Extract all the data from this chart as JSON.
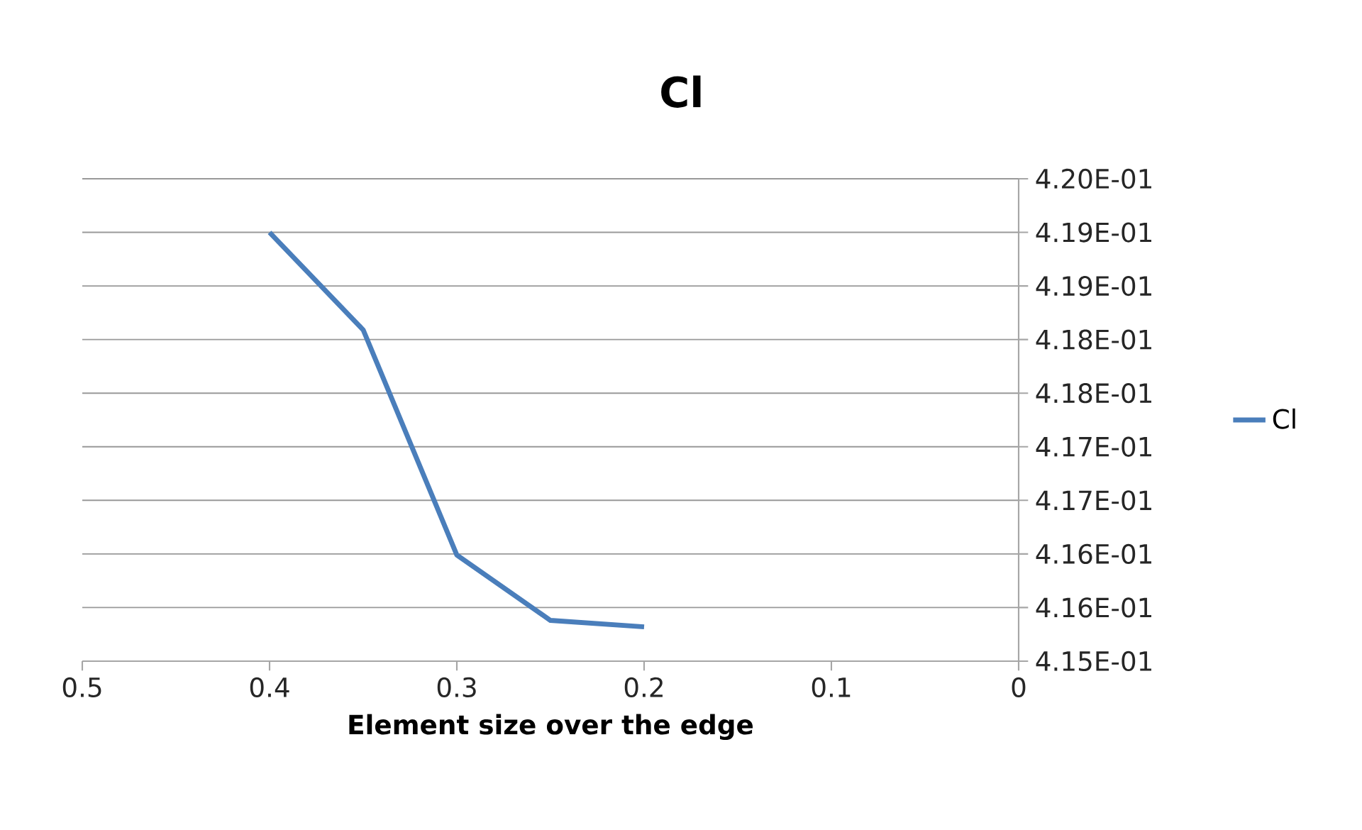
{
  "chart_data": {
    "type": "line",
    "title": "Cl",
    "xlabel": "Element size over the edge",
    "x": [
      0.4,
      0.35,
      0.3,
      0.25,
      0.2
    ],
    "series": [
      {
        "name": "Cl",
        "color": "#4a7ebb",
        "values": [
          0.4195,
          0.41859,
          0.41649,
          0.41588,
          0.41582
        ]
      }
    ],
    "xlim": [
      0.5,
      0
    ],
    "xticks": [
      0.5,
      0.4,
      0.3,
      0.2,
      0.1,
      0
    ],
    "ylim": [
      0.4155,
      0.42
    ],
    "yticks": [
      {
        "value": 0.4155,
        "label": "4.15E-01"
      },
      {
        "value": 0.416,
        "label": "4.16E-01"
      },
      {
        "value": 0.4165,
        "label": "4.16E-01"
      },
      {
        "value": 0.417,
        "label": "4.17E-01"
      },
      {
        "value": 0.4175,
        "label": "4.17E-01"
      },
      {
        "value": 0.418,
        "label": "4.18E-01"
      },
      {
        "value": 0.4185,
        "label": "4.18E-01"
      },
      {
        "value": 0.419,
        "label": "4.19E-01"
      },
      {
        "value": 0.4195,
        "label": "4.19E-01"
      },
      {
        "value": 0.42,
        "label": "4.20E-01"
      }
    ],
    "grid": "y",
    "legend": "right",
    "marker": "none",
    "line_style": "solid"
  }
}
